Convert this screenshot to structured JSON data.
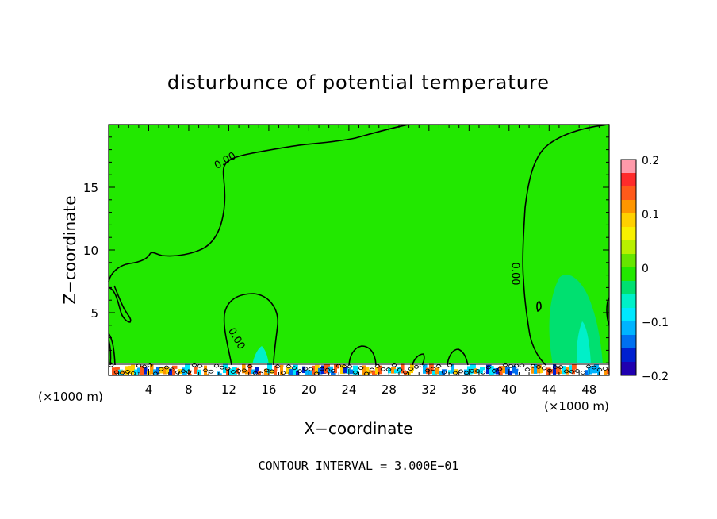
{
  "chart_data": {
    "type": "heatmap",
    "title": "disturbunce of potential temperature",
    "xlabel": "X−coordinate",
    "ylabel": "Z−coordinate",
    "x_unit": "(×1000 m)",
    "x_unit_right": "(×1000 m)",
    "xlim": [
      0,
      50
    ],
    "ylim": [
      0,
      20
    ],
    "x_ticks": [
      4,
      8,
      12,
      16,
      20,
      24,
      28,
      32,
      36,
      40,
      44,
      48
    ],
    "y_ticks": [
      5,
      10,
      15
    ],
    "colorbar": {
      "range": [
        -0.2,
        0.2
      ],
      "tick_values": [
        0.2,
        0.1,
        0,
        -0.1,
        -0.2
      ],
      "tick_labels": [
        "0.2",
        "0.1",
        "0",
        "−0.1",
        "−0.2"
      ],
      "colors": [
        "#ff9aaa",
        "#ff2b2b",
        "#ff5a1a",
        "#ff9600",
        "#ffd000",
        "#f8f000",
        "#b8f000",
        "#66e600",
        "#22e800",
        "#00e070",
        "#00f0c8",
        "#00e8ff",
        "#00b4ff",
        "#0070f0",
        "#0020d0",
        "#2000b0"
      ]
    },
    "contour_labels": [
      {
        "text": "0.00",
        "x": 11.8,
        "z": 16.9,
        "angle": -30
      },
      {
        "text": "0.00",
        "x": 12.5,
        "z": 2.8,
        "angle": 60
      },
      {
        "text": "0.00",
        "x": 40.3,
        "z": 8.1,
        "angle": 90
      }
    ],
    "contour_interval_text": "CONTOUR INTERVAL =  3.000E−01",
    "background_value": 0,
    "fill_color": "#22e800",
    "contour_color": "#000000"
  }
}
